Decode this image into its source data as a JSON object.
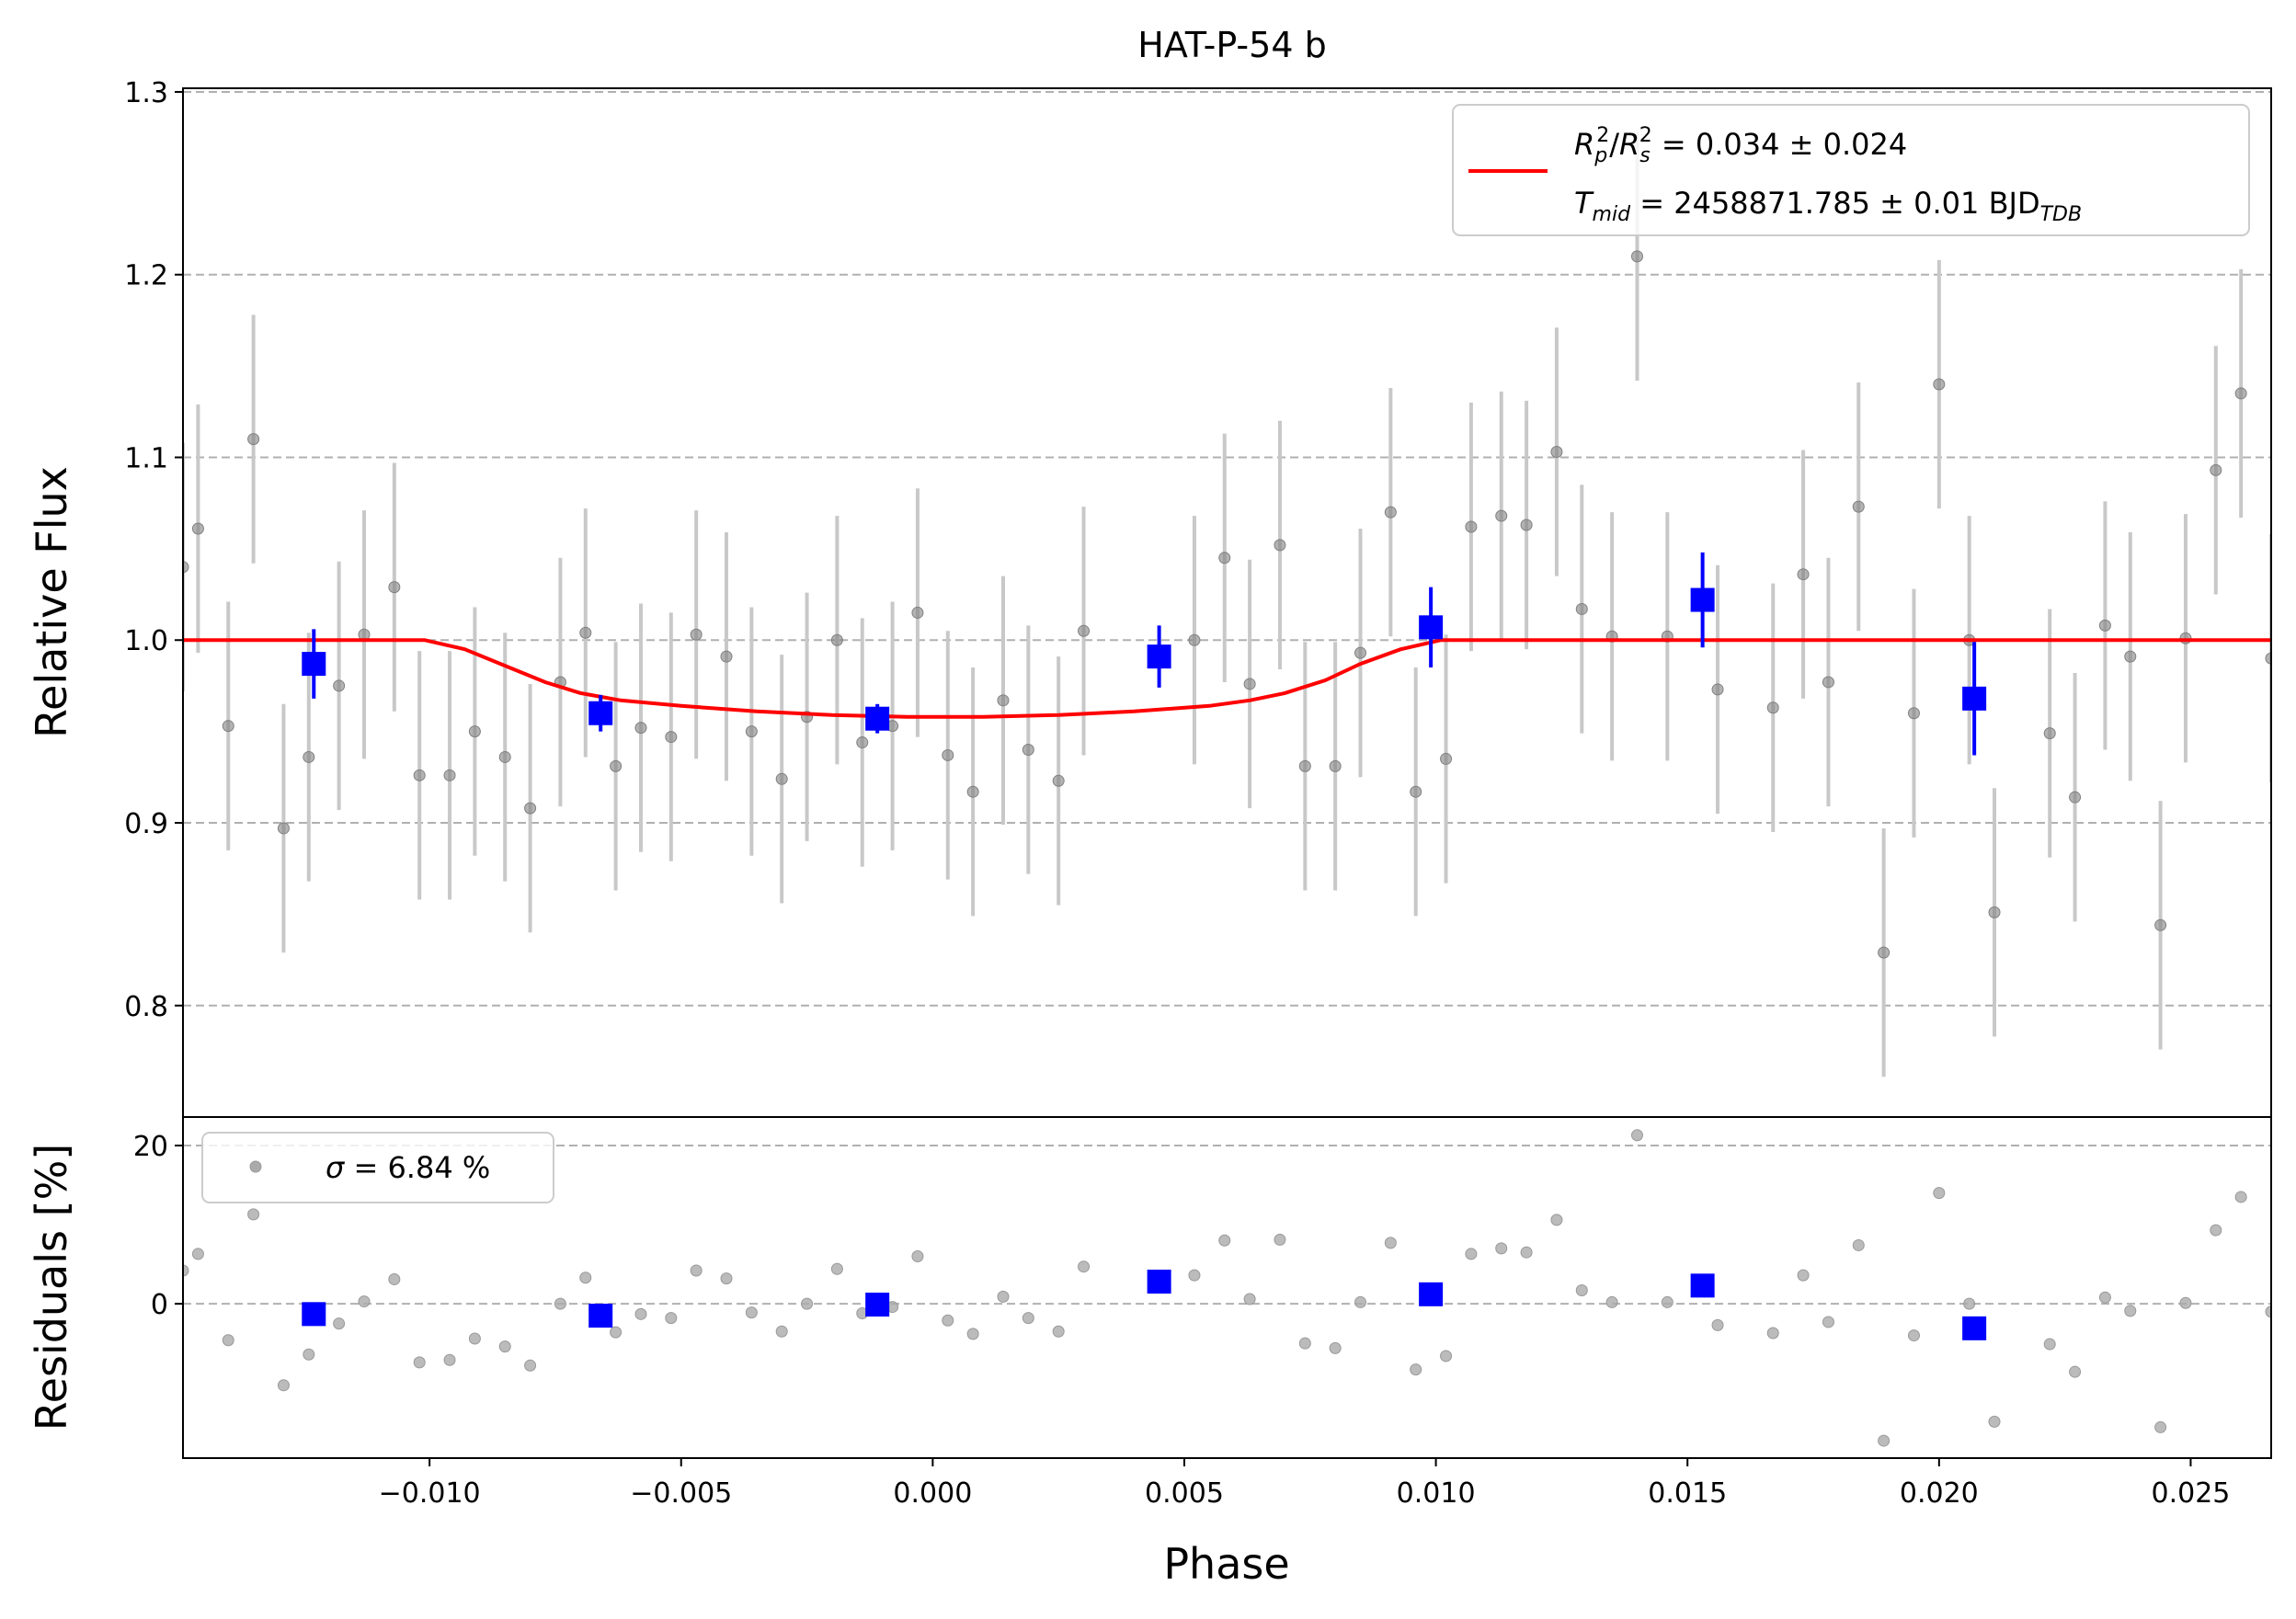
{
  "chart_data": {
    "type": "scatter",
    "title": "HAT-P-54 b",
    "xlabel": "Phase",
    "xlim": [
      -0.0149,
      0.0266
    ],
    "xticks": [
      -0.01,
      -0.005,
      0.0,
      0.005,
      0.01,
      0.015,
      0.02,
      0.025
    ],
    "xtick_labels": [
      "−0.010",
      "−0.005",
      "0.000",
      "0.005",
      "0.010",
      "0.015",
      "0.020",
      "0.025"
    ],
    "top_panel": {
      "ylabel": "Relative Flux",
      "ylim": [
        0.739,
        1.302
      ],
      "yticks": [
        0.8,
        0.9,
        1.0,
        1.1,
        1.2,
        1.3
      ],
      "ytick_labels": [
        "0.8",
        "0.9",
        "1.0",
        "1.1",
        "1.2",
        "1.3"
      ],
      "grid": true,
      "legend_location": "upper right",
      "legend": {
        "line1": {
          "main": "R",
          "sub1": "p",
          "sup1": "2",
          "slash": "/",
          "main2": "R",
          "sub2": "s",
          "sup2": "2",
          "rest": " = 0.034 ± 0.024"
        },
        "line2": {
          "main": "T",
          "sub": "mid",
          "rest": " = 2458871.785 ± 0.01 BJD",
          "sub2": "TDB"
        }
      },
      "series": [
        {
          "kind": "raw",
          "color": "#808080",
          "errcolor": "#c8c8c8",
          "x": [
            -0.0149,
            -0.0146,
            -0.014,
            -0.0135,
            -0.0129,
            -0.0124,
            -0.0118,
            -0.0113,
            -0.0107,
            -0.0102,
            -0.0096,
            -0.0091,
            -0.0085,
            -0.008,
            -0.0074,
            -0.0069,
            -0.0063,
            -0.0058,
            -0.0052,
            -0.0047,
            -0.0041,
            -0.0036,
            -0.003,
            -0.0025,
            -0.0019,
            -0.0014,
            -0.0008,
            -0.0003,
            0.0003,
            0.0008,
            0.0014,
            0.0019,
            0.0025,
            0.003,
            0.0052,
            0.0058,
            0.0063,
            0.0069,
            0.0074,
            0.008,
            0.0085,
            0.0091,
            0.0096,
            0.0102,
            0.0107,
            0.0113,
            0.0118,
            0.0124,
            0.0129,
            0.0135,
            0.014,
            0.0146,
            0.0156,
            0.0167,
            0.0173,
            0.0178,
            0.0184,
            0.0189,
            0.0195,
            0.02,
            0.0206,
            0.0211,
            0.0222,
            0.0227,
            0.0233,
            0.0238,
            0.0244,
            0.0249,
            0.0255,
            0.026,
            0.0266
          ],
          "y": [
            1.04,
            1.061,
            0.953,
            1.11,
            0.897,
            0.936,
            0.975,
            1.003,
            1.029,
            0.926,
            0.926,
            0.95,
            0.936,
            0.908,
            0.977,
            1.004,
            0.931,
            0.952,
            0.947,
            1.003,
            0.991,
            0.95,
            0.924,
            0.958,
            1.0,
            0.944,
            0.953,
            1.015,
            0.937,
            0.917,
            0.967,
            0.94,
            0.923,
            1.005,
            1.0,
            1.045,
            0.976,
            1.052,
            0.931,
            0.931,
            0.993,
            1.07,
            0.917,
            0.935,
            1.062,
            1.068,
            1.063,
            1.103,
            1.017,
            1.002,
            1.21,
            1.002,
            0.973,
            0.963,
            1.036,
            0.977,
            1.073,
            0.829,
            0.96,
            1.14,
            1.0,
            0.851,
            0.949,
            0.914,
            1.008,
            0.991,
            0.844,
            1.001,
            1.093,
            1.135,
            0.99
          ],
          "yerr": 0.068
        },
        {
          "kind": "binned",
          "color": "#0000ff",
          "x": [
            -0.0123,
            -0.0066,
            -0.0011,
            0.0045,
            0.0099,
            0.0153,
            0.0207
          ],
          "y": [
            0.987,
            0.96,
            0.957,
            0.991,
            1.007,
            1.022,
            0.968
          ],
          "yerr": [
            0.019,
            0.01,
            0.008,
            0.017,
            0.022,
            0.026,
            0.031
          ]
        },
        {
          "kind": "model",
          "color": "#ff0000",
          "x": [
            -0.0149,
            -0.0101,
            -0.0093,
            -0.0085,
            -0.0077,
            -0.007,
            -0.0062,
            -0.005,
            -0.0035,
            -0.002,
            -0.0005,
            0.001,
            0.0025,
            0.004,
            0.0055,
            0.0063,
            0.007,
            0.0078,
            0.0085,
            0.0093,
            0.0101,
            0.0266
          ],
          "y": [
            1.0,
            1.0,
            0.995,
            0.986,
            0.977,
            0.971,
            0.967,
            0.964,
            0.961,
            0.959,
            0.958,
            0.958,
            0.959,
            0.961,
            0.964,
            0.967,
            0.971,
            0.978,
            0.987,
            0.995,
            1.0,
            1.0
          ]
        }
      ]
    },
    "bottom_panel": {
      "ylabel": "Residuals [%]",
      "ylim": [
        -19.5,
        23.6
      ],
      "yticks": [
        0,
        20
      ],
      "ytick_labels": [
        "0",
        "20"
      ],
      "grid": true,
      "legend_location": "upper left",
      "legend": {
        "sigma": "σ",
        "rest": " = 6.84 %"
      },
      "series": [
        {
          "kind": "raw",
          "color": "#aaaaaa",
          "x": [
            -0.0149,
            -0.0146,
            -0.014,
            -0.0135,
            -0.0129,
            -0.0124,
            -0.0118,
            -0.0113,
            -0.0107,
            -0.0102,
            -0.0096,
            -0.0091,
            -0.0085,
            -0.008,
            -0.0074,
            -0.0069,
            -0.0063,
            -0.0058,
            -0.0052,
            -0.0047,
            -0.0041,
            -0.0036,
            -0.003,
            -0.0025,
            -0.0019,
            -0.0014,
            -0.0008,
            -0.0003,
            0.0003,
            0.0008,
            0.0014,
            0.0019,
            0.0025,
            0.003,
            0.0052,
            0.0058,
            0.0063,
            0.0069,
            0.0074,
            0.008,
            0.0085,
            0.0091,
            0.0096,
            0.0102,
            0.0107,
            0.0113,
            0.0118,
            0.0124,
            0.0129,
            0.0135,
            0.014,
            0.0146,
            0.0156,
            0.0167,
            0.0173,
            0.0178,
            0.0184,
            0.0189,
            0.0195,
            0.02,
            0.0206,
            0.0211,
            0.0222,
            0.0227,
            0.0233,
            0.0238,
            0.0244,
            0.0249,
            0.0255,
            0.026,
            0.0266
          ],
          "y": [
            4.2,
            6.3,
            -4.6,
            11.3,
            -10.3,
            -6.4,
            -2.5,
            0.3,
            3.1,
            -7.4,
            -7.1,
            -4.4,
            -5.4,
            -7.8,
            0.0,
            3.3,
            -3.6,
            -1.3,
            -1.8,
            4.2,
            3.2,
            -1.1,
            -3.5,
            0.0,
            4.4,
            -1.2,
            -0.4,
            6.0,
            -2.1,
            -3.8,
            0.9,
            -1.8,
            -3.5,
            4.7,
            3.6,
            8.0,
            0.6,
            8.1,
            -5.0,
            -5.6,
            0.2,
            7.7,
            -8.3,
            -6.6,
            6.3,
            7.0,
            6.5,
            10.6,
            1.7,
            0.2,
            21.3,
            0.2,
            -2.7,
            -3.7,
            3.6,
            -2.3,
            7.4,
            -17.3,
            -4.0,
            14.0,
            0.0,
            -14.9,
            -5.1,
            -8.6,
            0.8,
            -0.9,
            -15.6,
            0.1,
            9.3,
            13.5,
            -1.0
          ]
        },
        {
          "kind": "binned",
          "color": "#0000ff",
          "x": [
            -0.0123,
            -0.0066,
            -0.0011,
            0.0045,
            0.0099,
            0.0153,
            0.0207
          ],
          "y": [
            -1.3,
            -1.5,
            -0.1,
            2.8,
            1.2,
            2.3,
            -3.1
          ]
        }
      ]
    }
  }
}
